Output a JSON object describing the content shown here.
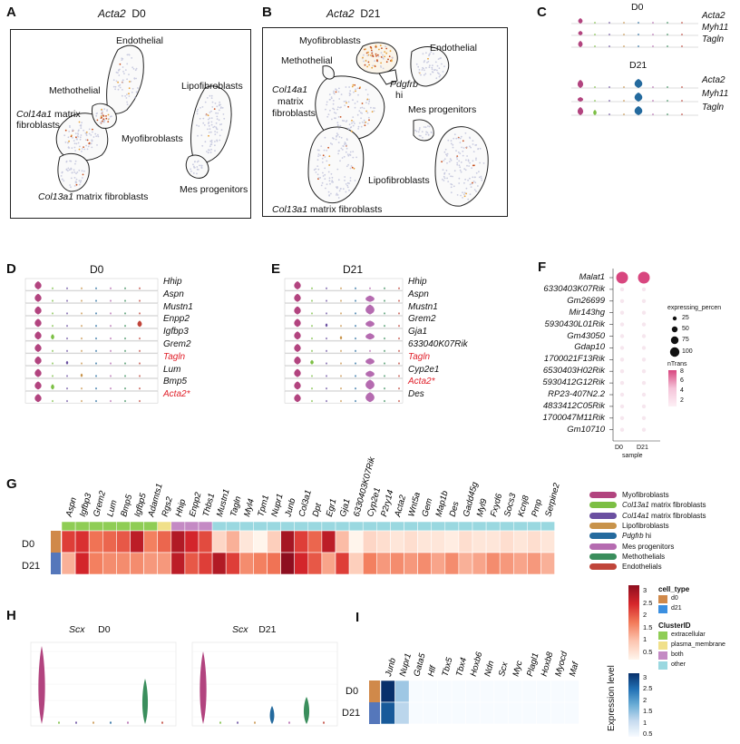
{
  "panels": {
    "A": {
      "letter": "A",
      "gene": "Acta2",
      "condition": "D0",
      "clusters": [
        "Endothelial",
        "Methothelial",
        "Col14a1 matrix",
        "fibroblasts",
        "Myofibroblasts",
        "Lipofibroblasts",
        "Mes progenitors",
        "Col13a1 matrix fibroblasts"
      ]
    },
    "B": {
      "letter": "B",
      "gene": "Acta2",
      "condition": "D21",
      "clusters": [
        "Myofibroblasts",
        "Endothelial",
        "Methothelial",
        "Pdgfrb",
        "hi",
        "Col14a1",
        "matrix",
        "fibroblasts",
        "Mes progenitors",
        "Lipofibroblasts",
        "Col13a1 matrix fibroblasts"
      ]
    },
    "C": {
      "letter": "C",
      "d0": "D0",
      "d21": "D21",
      "genes": [
        "Acta2",
        "Myh11",
        "Tagln"
      ]
    },
    "D": {
      "letter": "D",
      "title": "D0",
      "genes": [
        "Hhip",
        "Aspn",
        "Mustn1",
        "Enpp2",
        "Igfbp3",
        "Grem2",
        "Tagln",
        "Lum",
        "Bmp5",
        "Acta2*"
      ],
      "red_genes": [
        "Tagln",
        "Acta2*"
      ]
    },
    "E": {
      "letter": "E",
      "title": "D21",
      "genes": [
        "Hhip",
        "Aspn",
        "Mustn1",
        "Grem2",
        "Gja1",
        "633040K07Rik",
        "Tagln",
        "Cyp2e1",
        "Acta2*",
        "Des"
      ],
      "red_genes": [
        "Tagln",
        "Acta2*"
      ]
    },
    "F": {
      "letter": "F",
      "genes": [
        "Malat1",
        "6330403K07Rik",
        "Gm26699",
        "Mir143hg",
        "5930430L01Rik",
        "Gm43050",
        "Gdap10",
        "1700021F13Rik",
        "6530403H02Rik",
        "5930412G12Rik",
        "RP23-407N2.2",
        "4833412C05Rik",
        "1700047M11Rik",
        "Gm10710"
      ],
      "x_ticks": [
        "D0",
        "D21"
      ],
      "xlabel": "sample",
      "size_legend_title": "expressing_percen",
      "size_legend_values": [
        "25",
        "50",
        "75",
        "100"
      ],
      "color_legend_title": "nTrans",
      "color_legend_ticks": [
        "8",
        "6",
        "4",
        "2"
      ]
    },
    "G": {
      "letter": "G",
      "rows": [
        "D0",
        "D21"
      ],
      "genes": [
        "Aspn",
        "Igfbp3",
        "Grem2",
        "Lum",
        "Bmp5",
        "Igfbp5",
        "Adamts1",
        "Rgs2",
        "Hhip",
        "Enpp2",
        "Thbs1",
        "Mustn1",
        "Tagln",
        "Myl4",
        "Tpm1",
        "Nupr1",
        "Junb",
        "Col3a1",
        "Dpt",
        "Egr1",
        "Gja1",
        "6330403K07Rik",
        "Cyp2e1",
        "P2ry14",
        "Acta2",
        "Wnt5a",
        "Gem",
        "Map1b",
        "Des",
        "Gadd45g",
        "Myl9",
        "Fxyd6",
        "Socs3",
        "Kcnj8",
        "Pmp",
        "Serpine2"
      ],
      "legend": [
        "Myofibroblasts",
        "Col13a1 matrix fibroblasts",
        "Col14a1 matrix fibroblasts",
        "Lipofibroblasts",
        "Pdgfrb hi",
        "Mes progenitors",
        "Methothelials",
        "Endothelials"
      ]
    },
    "H": {
      "letter": "H",
      "gene": "Scx",
      "left": "D0",
      "right": "D21"
    },
    "I": {
      "letter": "I",
      "rows": [
        "D0",
        "D21"
      ],
      "genes": [
        "Junb",
        "Nupr1",
        "Gata5",
        "Hlf",
        "Tbx5",
        "Tbx4",
        "Hoxb6",
        "Ndn",
        "Scx",
        "Myc",
        "Plagl1",
        "Hoxb8",
        "Myocd",
        "Maf"
      ]
    },
    "side_legend": {
      "red_ticks": [
        "3",
        "2.5",
        "2",
        "1.5",
        "1",
        "0.5"
      ],
      "cell_type_title": "cell_type",
      "cell_types": [
        "d0",
        "d21"
      ],
      "cluster_title": "ClusterID",
      "clusters": [
        "extracellular",
        "plasma_membrane",
        "both",
        "other"
      ],
      "blue_ticks": [
        "3",
        "2.5",
        "2",
        "1.5",
        "1",
        "0.5"
      ],
      "expression_label": "Expression level"
    }
  },
  "colors": {
    "myofibroblasts": "#b2447f",
    "col13a1": "#7cbf44",
    "col14a1": "#6a4fa0",
    "lipofibroblasts": "#c8934a",
    "pdgfrb": "#246a9e",
    "mes_progenitors": "#b56bb0",
    "methothelials": "#3a8e5c",
    "endothelials": "#c0453a",
    "d0": "#d0894a",
    "d21": "#5577bb",
    "extracellular": "#8fcd55",
    "plasma_membrane": "#f0e08a",
    "both": "#c48ac4",
    "other": "#9ad8e0",
    "heat_red": "#b2182b",
    "heat_blue": "#08306b",
    "dot_pink": "#d8467f"
  },
  "chart_data": [
    {
      "type": "heatmap",
      "panel": "G",
      "rows": [
        "D0",
        "D21"
      ],
      "columns": [
        "Aspn",
        "Igfbp3",
        "Grem2",
        "Lum",
        "Bmp5",
        "Igfbp5",
        "Adamts1",
        "Rgs2",
        "Hhip",
        "Enpp2",
        "Thbs1",
        "Mustn1",
        "Tagln",
        "Myl4",
        "Tpm1",
        "Nupr1",
        "Junb",
        "Col3a1",
        "Dpt",
        "Egr1",
        "Gja1",
        "6330403K07Rik",
        "Cyp2e1",
        "P2ry14",
        "Acta2",
        "Wnt5a",
        "Gem",
        "Map1b",
        "Des",
        "Gadd45g",
        "Myl9",
        "Fxyd6",
        "Socs3",
        "Kcnj8",
        "Pmp",
        "Serpine2"
      ],
      "values": [
        [
          2.2,
          2.3,
          1.8,
          1.9,
          2.0,
          2.6,
          1.7,
          1.9,
          2.7,
          2.4,
          2.1,
          0.9,
          1.3,
          0.7,
          0.4,
          1.0,
          2.8,
          2.2,
          1.9,
          2.6,
          1.2,
          0.2,
          0.9,
          0.8,
          0.7,
          0.8,
          0.7,
          0.7,
          0.6,
          0.8,
          0.7,
          0.7,
          0.8,
          0.7,
          0.8,
          0.7
        ],
        [
          1.3,
          2.4,
          1.7,
          1.6,
          1.6,
          1.6,
          1.5,
          1.5,
          2.6,
          2.0,
          2.2,
          2.7,
          2.2,
          1.6,
          1.7,
          1.8,
          3.0,
          2.4,
          2.0,
          1.4,
          2.2,
          1.0,
          1.7,
          1.5,
          1.6,
          1.5,
          1.6,
          1.4,
          1.6,
          1.3,
          1.4,
          1.6,
          1.5,
          1.4,
          1.5,
          1.3
        ]
      ],
      "col_cluster": [
        "extracellular",
        "extracellular",
        "extracellular",
        "extracellular",
        "extracellular",
        "extracellular",
        "extracellular",
        "plasma_membrane",
        "both",
        "both",
        "both",
        "other",
        "other",
        "other",
        "other",
        "other",
        "other",
        "other",
        "other",
        "other",
        "other",
        "other",
        "other",
        "other",
        "other",
        "other",
        "other",
        "other",
        "other",
        "other",
        "other",
        "other",
        "other",
        "other",
        "other",
        "other"
      ],
      "scale": [
        0.5,
        3
      ]
    },
    {
      "type": "heatmap",
      "panel": "I",
      "rows": [
        "D0",
        "D21"
      ],
      "columns": [
        "Junb",
        "Nupr1",
        "Gata5",
        "Hlf",
        "Tbx5",
        "Tbx4",
        "Hoxb6",
        "Ndn",
        "Scx",
        "Myc",
        "Plagl1",
        "Hoxb8",
        "Myocd",
        "Maf"
      ],
      "values": [
        [
          3.0,
          1.4,
          0.3,
          0.3,
          0.3,
          0.3,
          0.3,
          0.3,
          0.3,
          0.3,
          0.3,
          0.3,
          0.3,
          0.3
        ],
        [
          2.6,
          1.2,
          0.3,
          0.3,
          0.3,
          0.3,
          0.3,
          0.3,
          0.3,
          0.3,
          0.3,
          0.3,
          0.3,
          0.3
        ]
      ],
      "scale": [
        0.5,
        3
      ]
    },
    {
      "type": "scatter",
      "panel": "F",
      "x": [
        "D0",
        "D21"
      ],
      "series": [
        {
          "gene": "Malat1",
          "pct": [
            100,
            100
          ],
          "ntrans": [
            8,
            8
          ]
        }
      ]
    }
  ]
}
